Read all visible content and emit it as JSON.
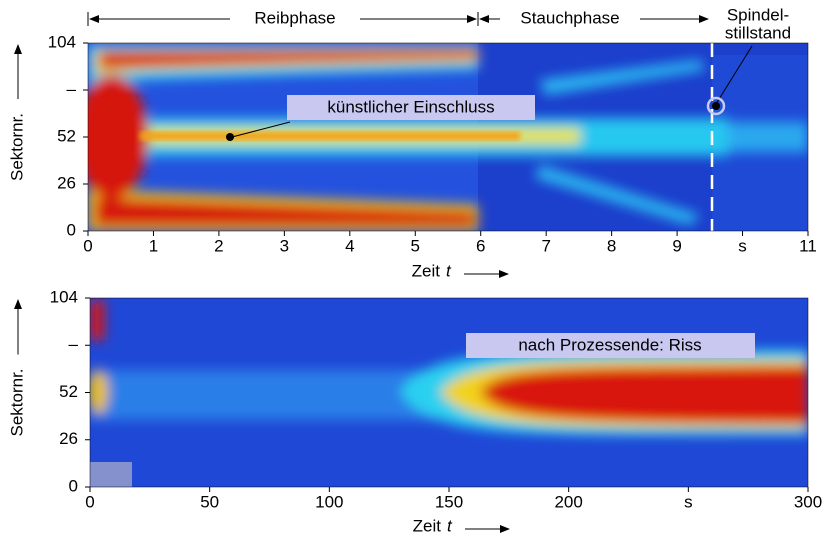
{
  "chart_data": [
    {
      "type": "heatmap",
      "ylabel": "Sektornr.",
      "xlabel": "Zeit",
      "xlabel_var": "t",
      "xlim": [
        0,
        11
      ],
      "ylim": [
        0,
        104
      ],
      "xticks": [
        0,
        1,
        2,
        3,
        4,
        5,
        6,
        7,
        8,
        9,
        {
          "value": 10,
          "label": "s"
        },
        11
      ],
      "yticks": [
        0,
        26,
        52,
        {
          "value": 78,
          "label": "–"
        },
        104
      ],
      "phases": [
        "Reibphase",
        "Stauchphase"
      ],
      "stop_label": [
        "Spindel-",
        "stillstand"
      ],
      "annotation": "künstlicher Einschluss"
    },
    {
      "type": "heatmap",
      "ylabel": "Sektornr.",
      "xlabel": "Zeit",
      "xlabel_var": "t",
      "xlim": [
        0,
        300
      ],
      "ylim": [
        0,
        104
      ],
      "xticks": [
        0,
        50,
        100,
        150,
        200,
        {
          "value": 250,
          "label": "s"
        },
        300
      ],
      "yticks": [
        0,
        26,
        52,
        {
          "value": 78,
          "label": "–"
        },
        104
      ],
      "annotation": "nach Prozessende: Riss"
    }
  ]
}
